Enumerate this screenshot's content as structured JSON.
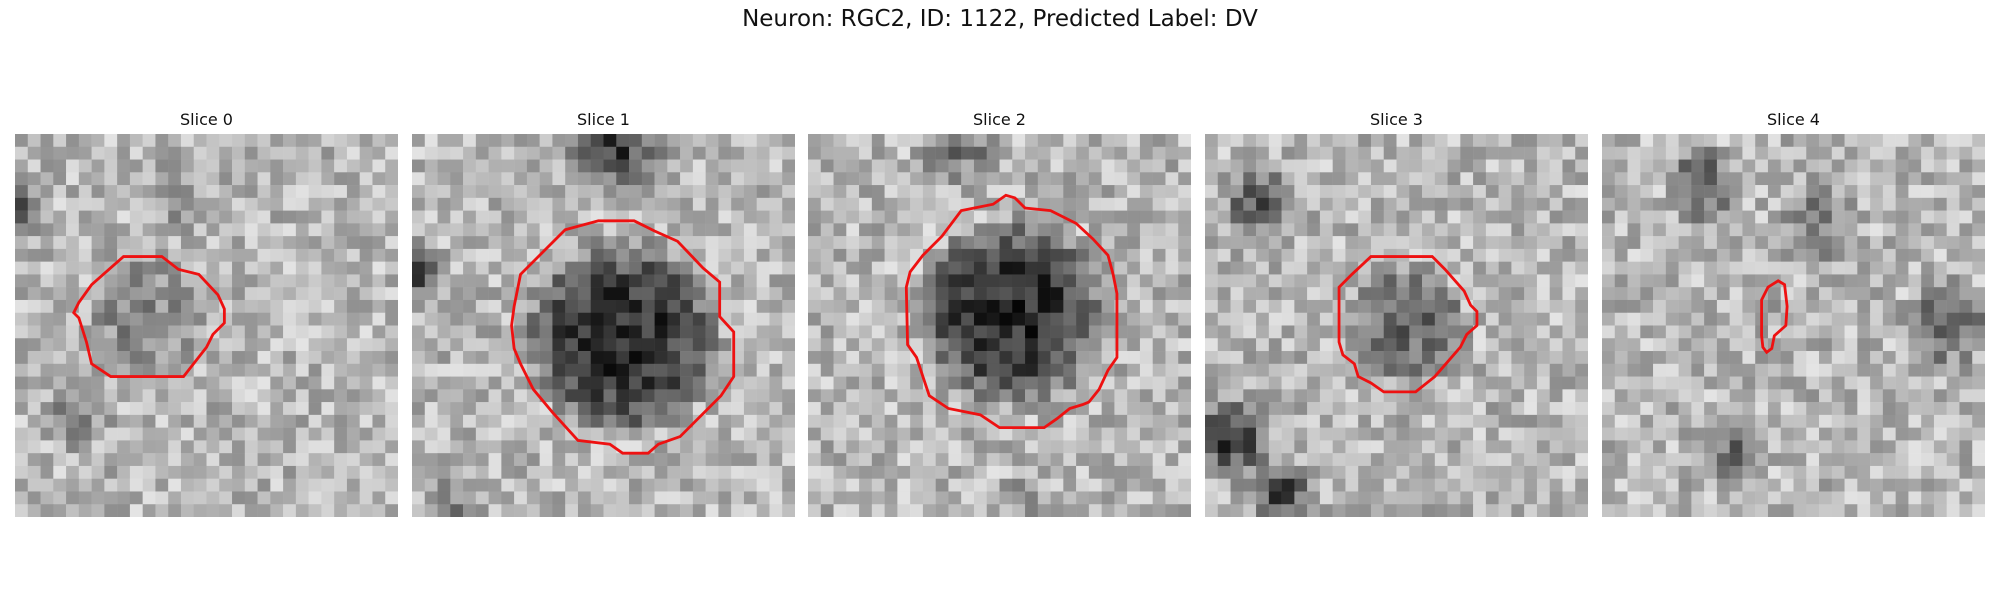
{
  "figure": {
    "title": "Neuron: RGC2, ID: 1122, Predicted Label: DV"
  },
  "panels": [
    {
      "label": "Slice 0",
      "cell_shade": "light"
    },
    {
      "label": "Slice 1",
      "cell_shade": "dark"
    },
    {
      "label": "Slice 2",
      "cell_shade": "dark"
    },
    {
      "label": "Slice 3",
      "cell_shade": "medium"
    },
    {
      "label": "Slice 4",
      "cell_shade": "none"
    }
  ],
  "contour_color": "#ee1111"
}
